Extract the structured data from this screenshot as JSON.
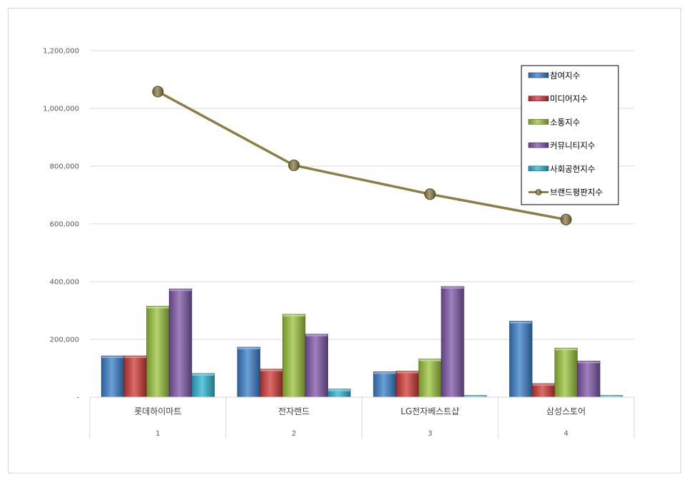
{
  "chart_data": {
    "type": "bar",
    "categories": [
      "롯데하이마트",
      "전자랜드",
      "LG전자베스트샵",
      "삼성스토어"
    ],
    "category_index": [
      "1",
      "2",
      "3",
      "4"
    ],
    "series": [
      {
        "name": "참여지수",
        "type": "bar",
        "color": "#3a7fcb",
        "values": [
          143000,
          173000,
          88000,
          263000
        ]
      },
      {
        "name": "미디어지수",
        "type": "bar",
        "color": "#d03b37",
        "values": [
          143000,
          97000,
          90000,
          47000
        ]
      },
      {
        "name": "소통지수",
        "type": "bar",
        "color": "#9bc43c",
        "values": [
          315000,
          287000,
          132000,
          170000
        ]
      },
      {
        "name": "커뮤니티지수",
        "type": "bar",
        "color": "#7d57a8",
        "values": [
          375000,
          218000,
          383000,
          125000
        ]
      },
      {
        "name": "사회공헌지수",
        "type": "bar",
        "color": "#2fb5d2",
        "values": [
          82000,
          28000,
          6000,
          6000
        ]
      },
      {
        "name": "브랜드평판지수",
        "type": "line",
        "color": "#8c7f45",
        "values": [
          1058000,
          803000,
          703000,
          615000
        ]
      }
    ],
    "y_ticks": [
      "-",
      "200,000",
      "400,000",
      "600,000",
      "800,000",
      "1,000,000",
      "1,200,000"
    ],
    "ylim": [
      0,
      1200000
    ],
    "grid": true,
    "legend": "top-right"
  }
}
